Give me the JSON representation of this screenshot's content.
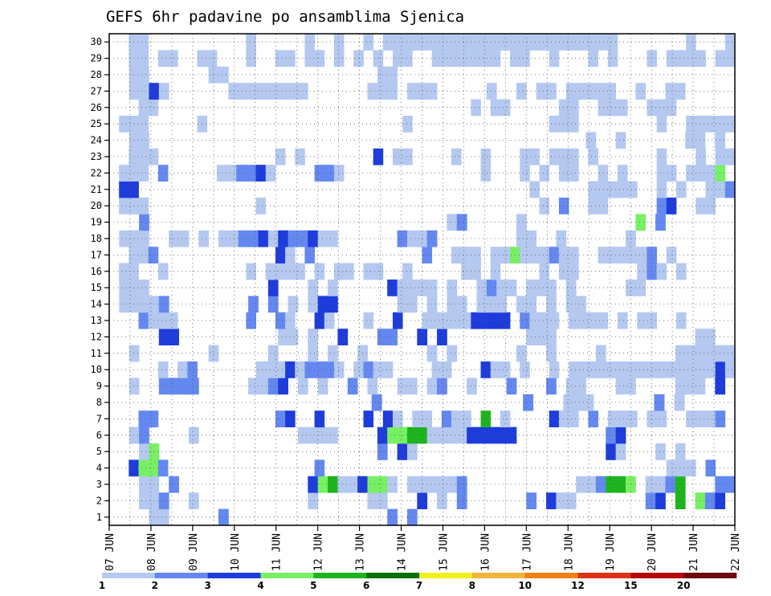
{
  "chart_data": {
    "type": "heatmap",
    "title": "GEFS 6hr padavine po ansamblima Sjenica",
    "xlabel": "",
    "ylabel": "",
    "x_tick_labels": [
      "07 JUN",
      "08 JUN",
      "09 JUN",
      "10 JUN",
      "11 JUN",
      "12 JUN",
      "13 JUN",
      "14 JUN",
      "15 JUN",
      "16 JUN",
      "17 JUN",
      "18 JUN",
      "19 JUN",
      "20 JUN",
      "21 JUN",
      "22 JUN"
    ],
    "y_tick_labels": [
      "1",
      "2",
      "3",
      "4",
      "5",
      "6",
      "7",
      "8",
      "9",
      "10",
      "11",
      "12",
      "13",
      "14",
      "15",
      "16",
      "17",
      "18",
      "19",
      "20",
      "21",
      "22",
      "23",
      "24",
      "25",
      "26",
      "27",
      "28",
      "29",
      "30"
    ],
    "x_range": [
      0,
      60
    ],
    "y_range": [
      1,
      30
    ],
    "grid": true,
    "legend_position": "bottom",
    "legend": {
      "labels": [
        "1",
        "2",
        "3",
        "4",
        "5",
        "6",
        "7",
        "8",
        "10",
        "12",
        "15",
        "20"
      ],
      "colors": [
        "#b4c8f0",
        "#6488f0",
        "#1e3cdc",
        "#78f064",
        "#1eb41e",
        "#0a6e0a",
        "#f0f01e",
        "#f0b43c",
        "#f08214",
        "#dc3214",
        "#b40a0a",
        "#6e0a0a"
      ]
    },
    "rows": [
      "..3.@@.....A................A.A................................",
      "...@@A..@...........@.....@@..3B.@.A......A.B@@.......AB.D.CAB.",
      "...@@.A.............BCD@@BCC@.@@@@@A...........@@ADDC.@@AD...AA",
      "..BCCA...............A...................................@@@.A..",
      "...@C......................A.B@...................B@...@.@.....",
      "..@A....@..........@@@@....BCCDD@@@@BBBBB.........AB...........",
      "...AA............AB..B....B.B@.@@.A@@.D.@....B@@.A.@@@.@@..@@@A.",
      "..........................A..............A...@@@......A.@.....",
      "..@..AAAA.....@@AB.@.@..A.@..@@.@A..@...A...A.@@...@@....@@@.B.",
      ".....@.@A......@@@B@AAA@.@A@@....@@...B@@.@..@.@@@@@@@@@@@@@@@B@",
      "..@.......@.....@...@.@..@......@.@......@..@....@.......@@@@@@",
      ".....BB..........@@.@..B...AA..B.B........@@@..............@@..",
      "...A@@@.......A..A@..B@...@..B..@@@@@BBBB.A@@@.@@@@.@.@@..@.....",
      ".@@@@A........A.A.@.@BB......@@.@.@@.@@@.@@.@.@@...............",
      ".@@@............B...@.@.....B@@@@.@..@A@@.@@@.@.....@@.........",
      ".@@..@........@.@@@@.@.@@.@@..@.....@@.@....@.@@......@A@.@.....",
      "..@@A............B@.A...........A..@@@.@@C@@@A@@..@@@@@A.@......",
      ".@@@..@@.@.@@AAB@BAAB@@......A@@A........@@..@......@..........",
      "...A..............................@A.....@...........C.A.......",
      ".@@@...........@............................@.A..@@.....AB..@@..",
      ".BB........................................@.....@@@@@..@.@..@@A",
      ".@@@.A.....@@AAB@....AA@..............@...@.@.@@..@.@...@@.@@@C.",
      "..@@@............@.@.......B.@@....@..@...@@.@@@.@......@...@.@@",
      "..@@............................................@..@......@@.@.",
      ".@@@.....@....................@..............@@@........@..@@@@@",
      "...@@................................@.@@.....@@..@@@..@@@......",
      "..@@B@......@@@@@@@@......@@@.@@@.....@..@.@@.@@@@@..@..@@.....",
      "..@@......@@...............@@..................................",
      "..@@.@@..@@...@..@@.@@.@.@.@.@@..@@@@@@@.@@..@...@.@...@.@@@@.@@",
      "..@@..........@.....@..@..@.@@@@@@@@@@@@@@@@@@@@@@@@.......@...@"
    ]
  }
}
